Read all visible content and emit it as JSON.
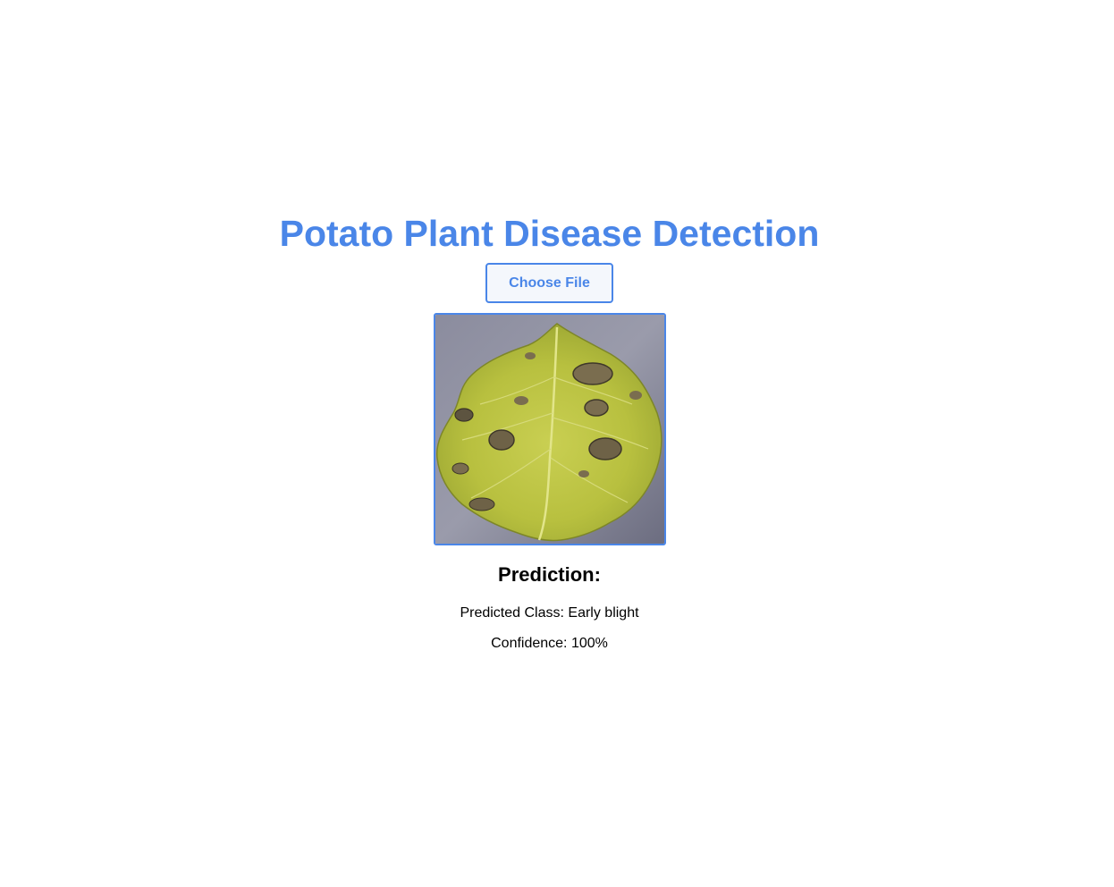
{
  "app": {
    "title": "Potato Plant Disease Detection"
  },
  "upload": {
    "button_label": "Choose File"
  },
  "preview": {
    "alt": "Uploaded potato leaf image"
  },
  "prediction": {
    "heading": "Prediction:",
    "class_text": "Predicted Class: Early blight",
    "confidence_text": "Confidence: 100%"
  },
  "colors": {
    "accent": "#4a86e8",
    "text": "#000000",
    "background": "#ffffff"
  }
}
